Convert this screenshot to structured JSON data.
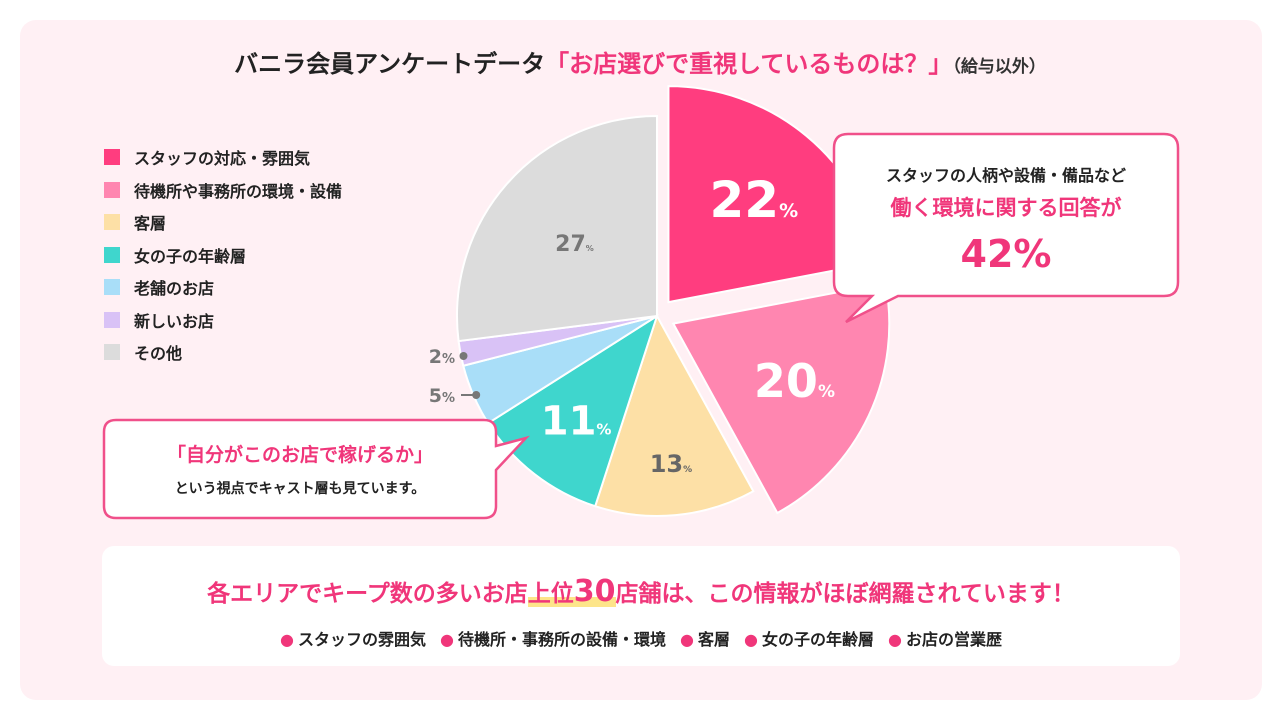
{
  "title": {
    "main": "バニラ会員アンケートデータ",
    "highlight": "「お店選びで重視しているものは？」",
    "note": "（給与以外）"
  },
  "chart_data": {
    "type": "pie",
    "unit": "%",
    "slices": [
      {
        "label": "スタッフの対応・雰囲気",
        "value": 22,
        "color": "#ff3d7f",
        "label_color": "#ffffff"
      },
      {
        "label": "待機所や事務所の環境・設備",
        "value": 20,
        "color": "#ff86b0",
        "label_color": "#ffffff"
      },
      {
        "label": "客層",
        "value": 13,
        "color": "#fde0a6",
        "label_color": "#666666"
      },
      {
        "label": "女の子の年齢層",
        "value": 11,
        "color": "#3fd6cd",
        "label_color": "#ffffff"
      },
      {
        "label": "老舗のお店",
        "value": 5,
        "color": "#a9def8",
        "label_color": "#777777"
      },
      {
        "label": "新しいお店",
        "value": 2,
        "color": "#d9c2f6",
        "label_color": "#777777"
      },
      {
        "label": "その他",
        "value": 27,
        "color": "#dcdcdc",
        "label_color": "#777777"
      }
    ]
  },
  "callout_right": {
    "line1": "スタッフの人柄や設備・備品など",
    "line2": "働く環境に関する回答が",
    "value": "42%"
  },
  "callout_left": {
    "line1": "「自分がこのお店で稼げるか」",
    "line2": "という視点でキャスト層も見ています。"
  },
  "summary": {
    "pre": "各エリアでキープ数の多いお店",
    "hl_a": "上位",
    "hl_num": "30",
    "post": "店舗は、この情報がほぼ網羅されています！",
    "bullets": [
      "スタッフの雰囲気",
      "待機所・事務所の設備・環境",
      "客層",
      "女の子の年齢層",
      "お店の営業歴"
    ]
  }
}
